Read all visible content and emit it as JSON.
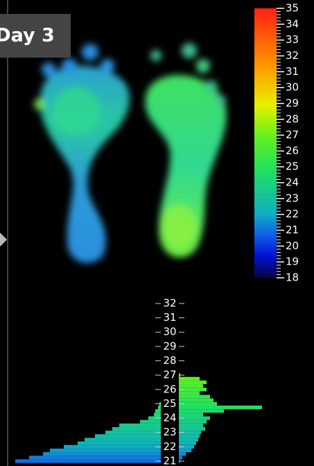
{
  "label": "Day 3",
  "color_scale": {
    "ylim": [
      18,
      35
    ],
    "ticks": [
      18,
      19,
      20,
      21,
      22,
      23,
      24,
      25,
      26,
      27,
      28,
      29,
      30,
      31,
      32,
      33,
      34,
      35
    ]
  },
  "histogram": {
    "ylim": [
      20.66,
      32.58
    ],
    "ticks": [
      21,
      22,
      23,
      24,
      25,
      26,
      27,
      28,
      29,
      30,
      31,
      32
    ],
    "temps": [
      27,
      26.75,
      26.5,
      26.25,
      26,
      25.75,
      25.5,
      25.25,
      25,
      24.75,
      24.5,
      24.25,
      24,
      23.75,
      23.5,
      23.25,
      23,
      22.75,
      22.5,
      22.25,
      22,
      21.75,
      21.5,
      21.25,
      21
    ],
    "left": [
      0,
      0,
      0,
      0,
      0,
      0,
      0,
      0,
      2,
      4,
      8,
      10,
      18,
      30,
      60,
      70,
      80,
      95,
      110,
      120,
      140,
      160,
      170,
      190,
      210
    ],
    "right": [
      2,
      30,
      40,
      35,
      40,
      30,
      45,
      50,
      55,
      120,
      65,
      35,
      45,
      40,
      35,
      38,
      32,
      30,
      28,
      25,
      22,
      18,
      10,
      5,
      2
    ]
  }
}
